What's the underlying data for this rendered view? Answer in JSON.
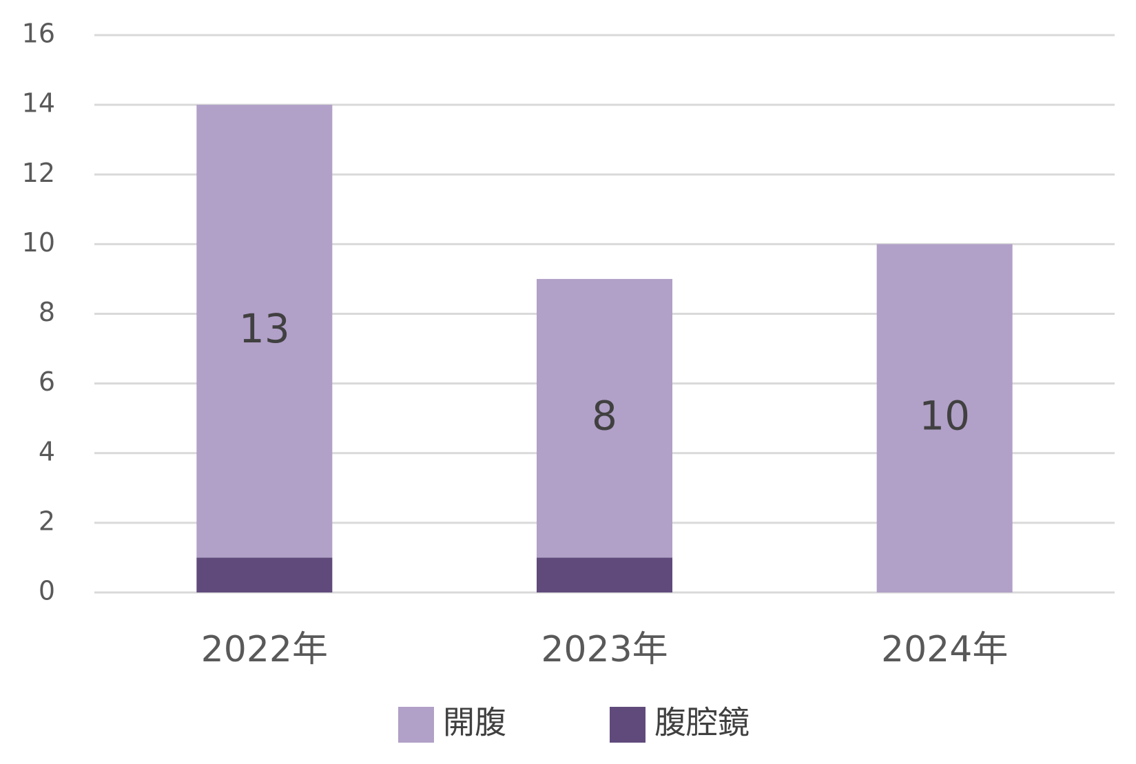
{
  "chart_data": {
    "type": "stacked_bar",
    "categories": [
      "2022年",
      "2023年",
      "2024年"
    ],
    "series": [
      {
        "name": "腹腔鏡",
        "color": "#604a7b",
        "values": [
          1,
          1,
          0
        ],
        "labels": false
      },
      {
        "name": "開腹",
        "color": "#b1a0c7",
        "values": [
          13,
          8,
          10
        ],
        "labels": true
      }
    ],
    "ylim": [
      0,
      16
    ],
    "yticks": [
      0,
      2,
      4,
      6,
      8,
      10,
      12,
      14,
      16
    ],
    "grid": true
  }
}
